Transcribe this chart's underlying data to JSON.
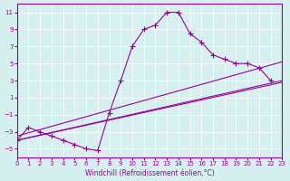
{
  "xlabel": "Windchill (Refroidissement éolien,°C)",
  "bg_color": "#d6f0f0",
  "line_color": "#990099",
  "xlim": [
    0,
    23
  ],
  "ylim": [
    -6,
    12
  ],
  "yticks": [
    -5,
    -3,
    -1,
    1,
    3,
    5,
    7,
    9,
    11
  ],
  "xticks": [
    0,
    1,
    2,
    3,
    4,
    5,
    6,
    7,
    8,
    9,
    10,
    11,
    12,
    13,
    14,
    15,
    16,
    17,
    18,
    19,
    20,
    21,
    22,
    23
  ],
  "grid_color": "#ffffff",
  "series": [
    {
      "x": [
        0,
        1,
        2,
        3,
        4,
        5,
        6,
        7,
        8,
        9,
        10,
        11,
        12,
        13,
        14,
        15,
        16,
        17,
        18,
        19,
        20,
        21,
        22
      ],
      "y": [
        -4,
        -2.5,
        -3,
        -3.5,
        -4,
        -4.5,
        -5,
        -5.2,
        -0.8,
        3,
        7,
        9,
        9.5,
        11,
        11,
        8.5,
        7.5,
        6,
        5.5,
        5,
        5,
        4.5,
        3
      ]
    },
    {
      "x": [
        0,
        23
      ],
      "y": [
        -4,
        3
      ]
    },
    {
      "x": [
        0,
        23
      ],
      "y": [
        -4,
        2.8
      ]
    },
    {
      "x": [
        0,
        23
      ],
      "y": [
        -3.5,
        5.2
      ]
    }
  ]
}
